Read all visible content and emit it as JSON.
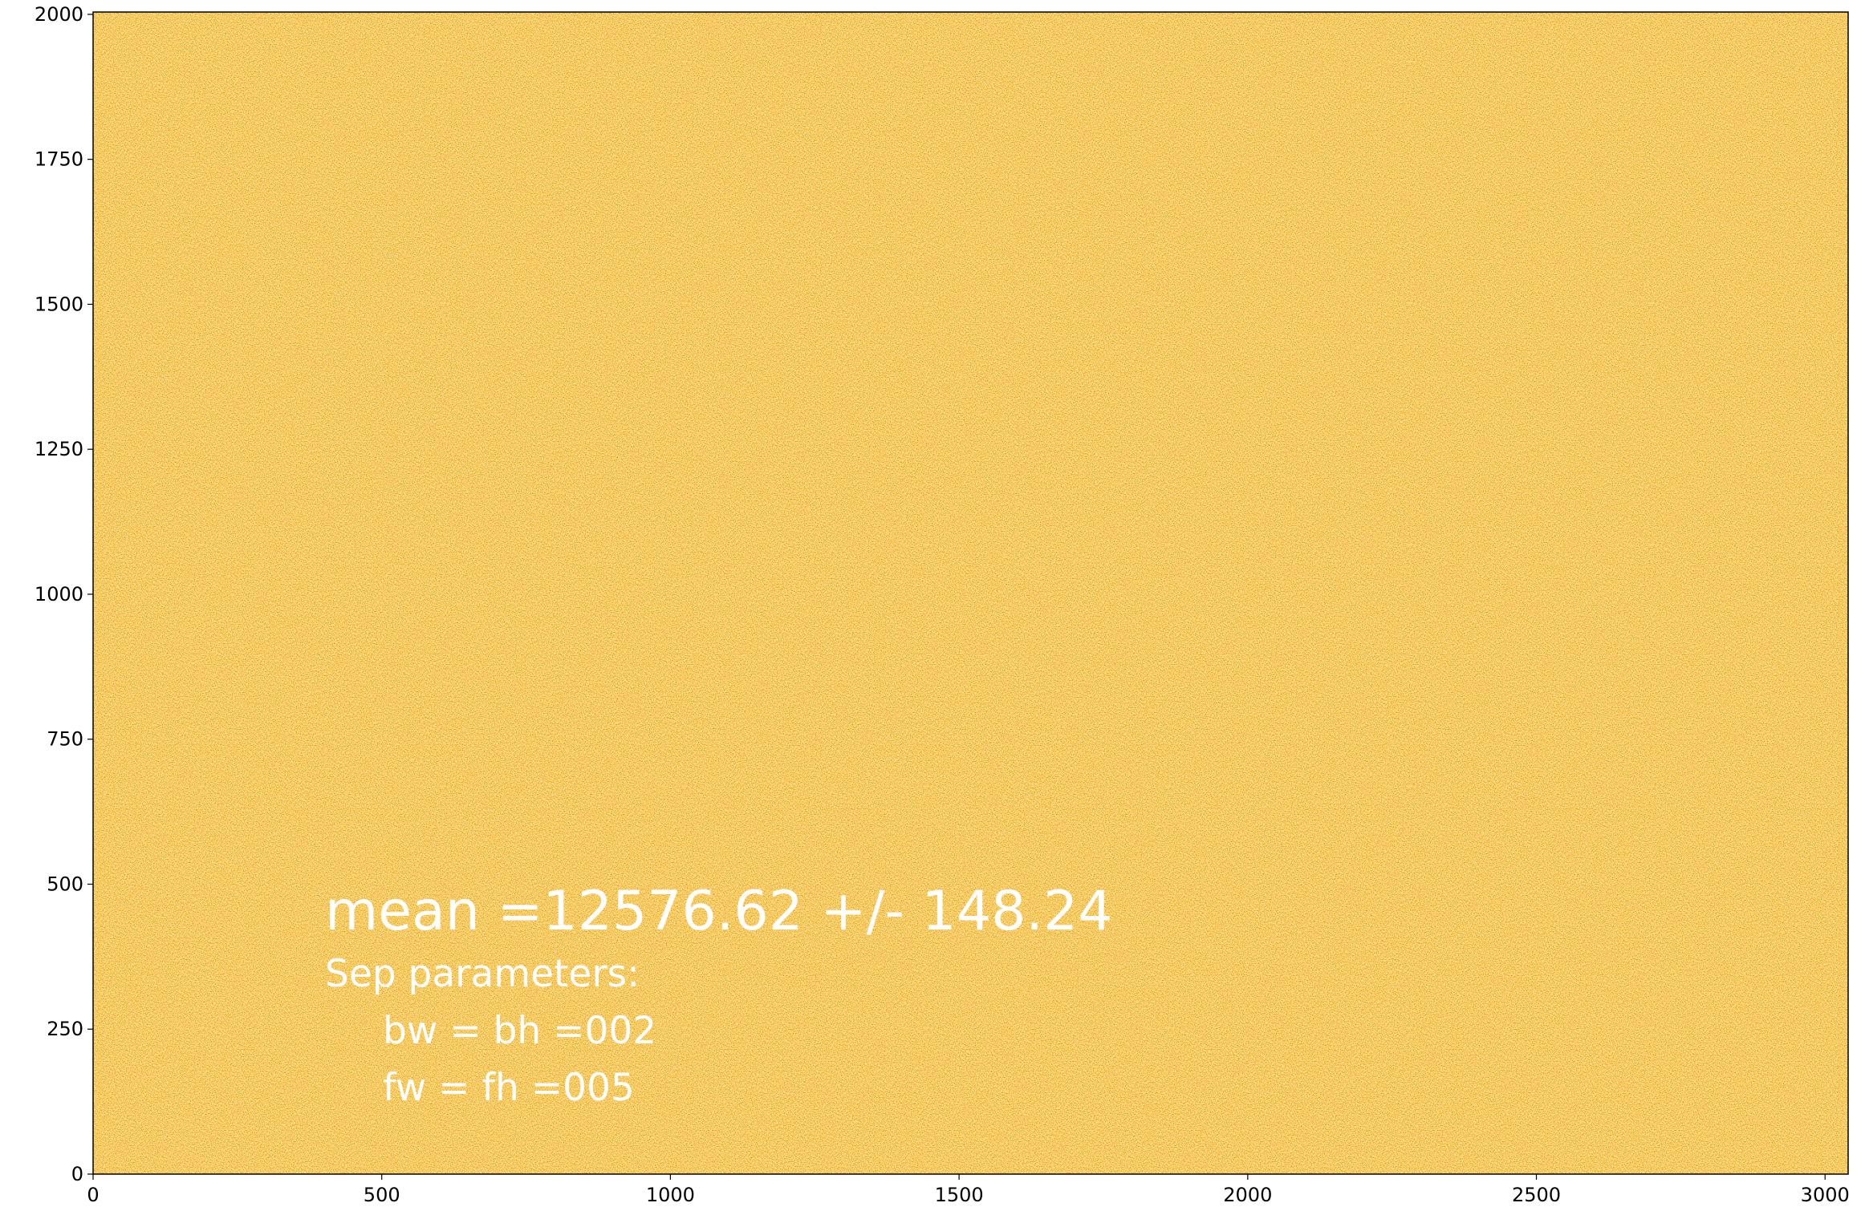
{
  "chart_data": {
    "type": "image",
    "colormap": "afmhot",
    "xlim": [
      0,
      3040
    ],
    "ylim": [
      0,
      2004
    ],
    "xticks": [
      0,
      500,
      1000,
      1500,
      2000,
      2500,
      3000
    ],
    "yticks": [
      0,
      250,
      500,
      750,
      1000,
      1250,
      1500,
      1750,
      2000
    ],
    "annotations": [
      "mean =12576.62 +/- 148.24",
      "Sep parameters:",
      "bw = bh =002",
      "fw = fh =005"
    ]
  }
}
